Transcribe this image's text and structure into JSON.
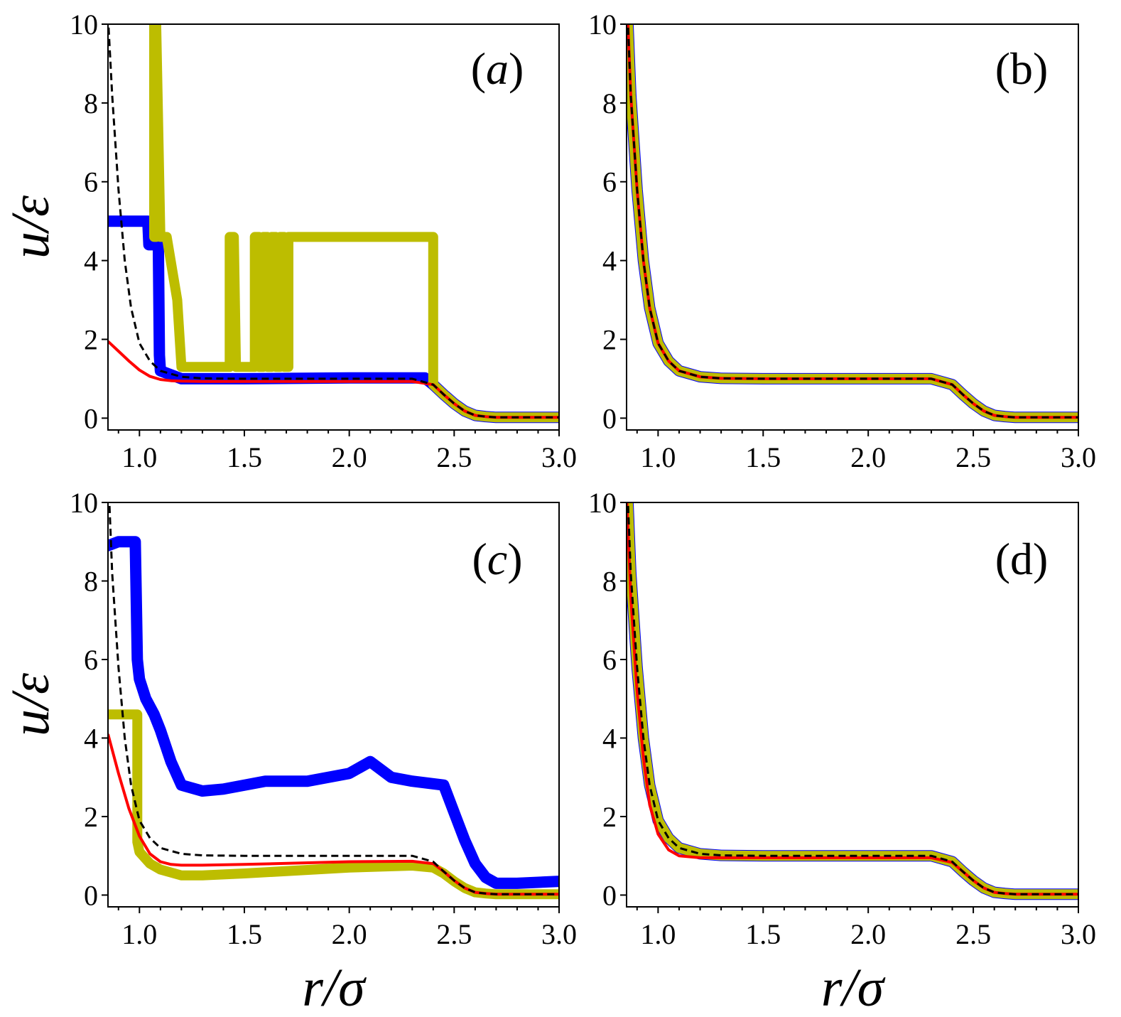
{
  "chart_data": [
    {
      "type": "line",
      "panel_label": "(a)",
      "panel_label_parts": [
        "(",
        "a",
        ")"
      ],
      "xlim": [
        0.85,
        3.0
      ],
      "ylim": [
        -0.3,
        10
      ],
      "xticks": [
        1.0,
        1.5,
        2.0,
        2.5,
        3.0
      ],
      "xtick_labels": [
        "1.0",
        "1.5",
        "2.0",
        "2.5",
        "3.0"
      ],
      "yticks": [
        0,
        2,
        4,
        6,
        8,
        10
      ],
      "ytick_labels": [
        "0",
        "2",
        "4",
        "6",
        "8",
        "10"
      ],
      "ylabel": "u/ε",
      "xlabel": "",
      "series": [
        {
          "name": "blue",
          "color": "#0000ff",
          "style": "thick",
          "x": [
            0.85,
            1.04,
            1.045,
            1.09,
            1.095,
            1.1,
            1.2,
            1.5,
            2.0,
            2.36,
            2.4,
            2.45,
            2.5,
            2.55,
            2.6,
            2.65,
            2.7,
            3.0
          ],
          "y": [
            5.0,
            5.0,
            4.4,
            4.4,
            1.6,
            1.2,
            1.0,
            1.0,
            1.02,
            1.02,
            0.85,
            0.6,
            0.37,
            0.18,
            0.07,
            0.04,
            0.02,
            0.02
          ]
        },
        {
          "name": "olive",
          "color": "#bdbd00",
          "style": "thick",
          "x": [
            1.07,
            1.07,
            1.08,
            1.08,
            1.1,
            1.13,
            1.18,
            1.2,
            1.43,
            1.43,
            1.45,
            1.46,
            1.46,
            1.48,
            1.48,
            1.55,
            1.55,
            1.57,
            1.57,
            1.59,
            1.59,
            1.61,
            1.61,
            1.63,
            1.63,
            1.65,
            1.65,
            1.67,
            1.67,
            1.69,
            1.69,
            1.71,
            1.71,
            2.4,
            2.4,
            2.45,
            2.5,
            2.55,
            2.6,
            2.65,
            2.7,
            3.0
          ],
          "y": [
            10,
            4.6,
            4.6,
            10,
            4.6,
            4.6,
            3.0,
            1.3,
            1.3,
            4.6,
            4.6,
            1.3,
            1.3,
            1.3,
            1.3,
            1.3,
            4.6,
            4.6,
            1.3,
            1.3,
            4.6,
            4.6,
            1.3,
            1.3,
            4.6,
            4.6,
            1.3,
            1.3,
            4.6,
            4.6,
            1.3,
            1.3,
            4.6,
            4.6,
            0.85,
            0.6,
            0.37,
            0.18,
            0.07,
            0.04,
            0.02,
            0.02
          ]
        },
        {
          "name": "red",
          "color": "#ff0000",
          "style": "solid",
          "x": [
            0.85,
            0.9,
            0.95,
            1.0,
            1.05,
            1.1,
            1.15,
            1.2,
            1.3,
            1.5,
            2.0,
            2.3,
            2.4,
            2.45,
            2.5,
            2.55,
            2.6,
            2.65,
            2.7,
            3.0
          ],
          "y": [
            1.95,
            1.7,
            1.45,
            1.22,
            1.06,
            0.98,
            0.95,
            0.94,
            0.93,
            0.93,
            0.93,
            0.93,
            0.85,
            0.6,
            0.37,
            0.18,
            0.07,
            0.04,
            0.02,
            0.02
          ]
        },
        {
          "name": "black-dashed",
          "color": "#000000",
          "style": "dashed",
          "x": [
            0.85,
            0.87,
            0.9,
            0.93,
            0.96,
            1.0,
            1.05,
            1.1,
            1.2,
            1.3,
            1.5,
            2.0,
            2.3,
            2.4,
            2.45,
            2.5,
            2.55,
            2.6,
            2.65,
            2.7,
            3.0
          ],
          "y": [
            10.2,
            8.2,
            5.8,
            4.0,
            2.8,
            1.9,
            1.45,
            1.2,
            1.05,
            1.01,
            1.0,
            1.0,
            1.0,
            0.85,
            0.6,
            0.37,
            0.18,
            0.07,
            0.04,
            0.02,
            0.02
          ]
        }
      ]
    },
    {
      "type": "line",
      "panel_label": "(b)",
      "panel_label_parts": [
        "(",
        "b",
        ")"
      ],
      "xlim": [
        0.85,
        3.0
      ],
      "ylim": [
        -0.3,
        10
      ],
      "xticks": [
        1.0,
        1.5,
        2.0,
        2.5,
        3.0
      ],
      "xtick_labels": [
        "1.0",
        "1.5",
        "2.0",
        "2.5",
        "3.0"
      ],
      "yticks": [
        0,
        2,
        4,
        6,
        8,
        10
      ],
      "ytick_labels": [
        "0",
        "2",
        "4",
        "6",
        "8",
        "10"
      ],
      "ylabel": "",
      "xlabel": "",
      "series": [
        {
          "name": "blue",
          "color": "#0000ff",
          "style": "thick",
          "x": [
            0.855,
            0.87,
            0.9,
            0.93,
            0.96,
            1.0,
            1.05,
            1.1,
            1.2,
            1.3,
            1.5,
            2.0,
            2.3,
            2.4,
            2.45,
            2.5,
            2.55,
            2.6,
            2.65,
            2.7,
            3.0
          ],
          "y": [
            10.2,
            8.2,
            5.8,
            4.0,
            2.8,
            1.9,
            1.45,
            1.2,
            1.05,
            1.01,
            1.0,
            1.0,
            1.0,
            0.85,
            0.6,
            0.37,
            0.18,
            0.07,
            0.04,
            0.02,
            0.02
          ]
        },
        {
          "name": "olive",
          "color": "#bdbd00",
          "style": "thick",
          "x": [
            0.855,
            0.87,
            0.9,
            0.93,
            0.96,
            1.0,
            1.05,
            1.1,
            1.2,
            1.3,
            1.5,
            2.0,
            2.3,
            2.4,
            2.45,
            2.5,
            2.55,
            2.6,
            2.65,
            2.7,
            3.0
          ],
          "y": [
            10.2,
            8.2,
            5.8,
            4.0,
            2.8,
            1.9,
            1.45,
            1.2,
            1.05,
            1.01,
            1.0,
            1.0,
            1.0,
            0.85,
            0.6,
            0.37,
            0.18,
            0.07,
            0.04,
            0.02,
            0.02
          ]
        },
        {
          "name": "red",
          "color": "#ff0000",
          "style": "solid",
          "x": [
            0.855,
            0.87,
            0.9,
            0.93,
            0.96,
            1.0,
            1.05,
            1.1,
            1.2,
            1.3,
            1.5,
            2.0,
            2.3,
            2.4,
            2.45,
            2.5,
            2.55,
            2.6,
            2.65,
            2.7,
            3.0
          ],
          "y": [
            10.2,
            8.2,
            5.8,
            4.0,
            2.8,
            1.9,
            1.45,
            1.2,
            1.05,
            1.01,
            1.0,
            1.0,
            1.0,
            0.85,
            0.6,
            0.37,
            0.18,
            0.07,
            0.04,
            0.02,
            0.02
          ]
        },
        {
          "name": "black-dashed",
          "color": "#000000",
          "style": "dashed",
          "x": [
            0.855,
            0.87,
            0.9,
            0.93,
            0.96,
            1.0,
            1.05,
            1.1,
            1.2,
            1.3,
            1.5,
            2.0,
            2.3,
            2.4,
            2.45,
            2.5,
            2.55,
            2.6,
            2.65,
            2.7,
            3.0
          ],
          "y": [
            10.2,
            8.2,
            5.8,
            4.0,
            2.8,
            1.9,
            1.45,
            1.2,
            1.05,
            1.01,
            1.0,
            1.0,
            1.0,
            0.85,
            0.6,
            0.37,
            0.18,
            0.07,
            0.04,
            0.02,
            0.02
          ]
        }
      ]
    },
    {
      "type": "line",
      "panel_label": "(c)",
      "panel_label_parts": [
        "(",
        "c",
        ")"
      ],
      "xlim": [
        0.85,
        3.0
      ],
      "ylim": [
        -0.3,
        10
      ],
      "xticks": [
        1.0,
        1.5,
        2.0,
        2.5,
        3.0
      ],
      "xtick_labels": [
        "1.0",
        "1.5",
        "2.0",
        "2.5",
        "3.0"
      ],
      "yticks": [
        0,
        2,
        4,
        6,
        8,
        10
      ],
      "ytick_labels": [
        "0",
        "2",
        "4",
        "6",
        "8",
        "10"
      ],
      "ylabel": "u/ε",
      "xlabel": "r/σ",
      "series": [
        {
          "name": "blue",
          "color": "#0000ff",
          "style": "thick",
          "x": [
            0.85,
            0.9,
            0.95,
            0.98,
            0.99,
            1.0,
            1.03,
            1.07,
            1.1,
            1.15,
            1.2,
            1.3,
            1.4,
            1.6,
            1.8,
            2.0,
            2.1,
            2.2,
            2.3,
            2.45,
            2.5,
            2.55,
            2.6,
            2.65,
            2.7,
            2.8,
            3.0
          ],
          "y": [
            8.9,
            9.0,
            9.0,
            9.0,
            6.0,
            5.5,
            5.0,
            4.6,
            4.2,
            3.4,
            2.8,
            2.65,
            2.7,
            2.9,
            2.9,
            3.1,
            3.4,
            3.0,
            2.9,
            2.8,
            2.1,
            1.4,
            0.8,
            0.45,
            0.3,
            0.3,
            0.35
          ]
        },
        {
          "name": "olive",
          "color": "#bdbd00",
          "style": "thick",
          "x": [
            0.85,
            0.99,
            0.99,
            1.0,
            1.05,
            1.1,
            1.2,
            1.3,
            1.5,
            2.0,
            2.3,
            2.4,
            2.45,
            2.5,
            2.55,
            2.6,
            2.65,
            2.7,
            3.0
          ],
          "y": [
            4.6,
            4.6,
            1.35,
            1.1,
            0.8,
            0.65,
            0.5,
            0.5,
            0.55,
            0.7,
            0.75,
            0.7,
            0.55,
            0.35,
            0.18,
            0.07,
            0.04,
            0.02,
            0.02
          ]
        },
        {
          "name": "red",
          "color": "#ff0000",
          "style": "solid",
          "x": [
            0.85,
            0.9,
            0.95,
            1.0,
            1.05,
            1.1,
            1.15,
            1.2,
            1.3,
            1.5,
            2.0,
            2.3,
            2.4,
            2.45,
            2.5,
            2.55,
            2.6,
            2.65,
            2.7,
            3.0
          ],
          "y": [
            4.1,
            3.1,
            2.2,
            1.5,
            1.05,
            0.85,
            0.78,
            0.76,
            0.76,
            0.78,
            0.85,
            0.86,
            0.8,
            0.6,
            0.37,
            0.18,
            0.07,
            0.04,
            0.02,
            0.02
          ]
        },
        {
          "name": "black-dashed",
          "color": "#000000",
          "style": "dashed",
          "x": [
            0.855,
            0.87,
            0.9,
            0.93,
            0.96,
            1.0,
            1.05,
            1.1,
            1.2,
            1.3,
            1.5,
            2.0,
            2.3,
            2.4,
            2.45,
            2.5,
            2.55,
            2.6,
            2.65,
            2.7,
            3.0
          ],
          "y": [
            10.2,
            8.2,
            5.8,
            4.0,
            2.8,
            1.9,
            1.45,
            1.2,
            1.05,
            1.01,
            1.0,
            1.0,
            1.0,
            0.85,
            0.6,
            0.37,
            0.18,
            0.07,
            0.04,
            0.02,
            0.02
          ]
        }
      ]
    },
    {
      "type": "line",
      "panel_label": "(d)",
      "panel_label_parts": [
        "(",
        "d",
        ")"
      ],
      "xlim": [
        0.85,
        3.0
      ],
      "ylim": [
        -0.3,
        10
      ],
      "xticks": [
        1.0,
        1.5,
        2.0,
        2.5,
        3.0
      ],
      "xtick_labels": [
        "1.0",
        "1.5",
        "2.0",
        "2.5",
        "3.0"
      ],
      "yticks": [
        0,
        2,
        4,
        6,
        8,
        10
      ],
      "ytick_labels": [
        "0",
        "2",
        "4",
        "6",
        "8",
        "10"
      ],
      "ylabel": "",
      "xlabel": "r/σ",
      "series": [
        {
          "name": "blue",
          "color": "#0000ff",
          "style": "thick",
          "x": [
            0.855,
            0.87,
            0.9,
            0.93,
            0.96,
            1.0,
            1.05,
            1.1,
            1.2,
            1.3,
            1.5,
            2.0,
            2.3,
            2.4,
            2.45,
            2.5,
            2.55,
            2.6,
            2.65,
            2.7,
            3.0
          ],
          "y": [
            10.2,
            8.2,
            5.8,
            4.0,
            2.8,
            1.9,
            1.45,
            1.2,
            1.05,
            1.01,
            1.0,
            1.0,
            1.0,
            0.85,
            0.6,
            0.37,
            0.18,
            0.07,
            0.04,
            0.02,
            0.02
          ]
        },
        {
          "name": "olive",
          "color": "#bdbd00",
          "style": "thick",
          "x": [
            0.855,
            0.87,
            0.9,
            0.93,
            0.96,
            1.0,
            1.05,
            1.1,
            1.2,
            1.3,
            1.5,
            2.0,
            2.3,
            2.4,
            2.45,
            2.5,
            2.55,
            2.6,
            2.65,
            2.7,
            3.0
          ],
          "y": [
            10.2,
            8.2,
            5.8,
            4.0,
            2.8,
            1.9,
            1.45,
            1.2,
            1.05,
            1.01,
            1.0,
            1.0,
            1.0,
            0.85,
            0.6,
            0.37,
            0.18,
            0.07,
            0.04,
            0.02,
            0.02
          ]
        },
        {
          "name": "red",
          "color": "#ff0000",
          "style": "solid",
          "x": [
            0.85,
            0.87,
            0.9,
            0.93,
            0.96,
            1.0,
            1.05,
            1.1,
            1.2,
            1.3,
            1.5,
            2.0,
            2.3,
            2.4,
            2.45,
            2.5,
            2.55,
            2.6,
            2.65,
            2.7,
            3.0
          ],
          "y": [
            10.2,
            7.6,
            5.2,
            3.5,
            2.3,
            1.55,
            1.15,
            1.0,
            0.95,
            0.95,
            0.95,
            0.95,
            0.95,
            0.83,
            0.6,
            0.37,
            0.18,
            0.07,
            0.04,
            0.02,
            0.02
          ]
        },
        {
          "name": "black-dashed",
          "color": "#000000",
          "style": "dashed",
          "x": [
            0.855,
            0.87,
            0.9,
            0.93,
            0.96,
            1.0,
            1.05,
            1.1,
            1.2,
            1.3,
            1.5,
            2.0,
            2.3,
            2.4,
            2.45,
            2.5,
            2.55,
            2.6,
            2.65,
            2.7,
            3.0
          ],
          "y": [
            10.2,
            8.2,
            5.8,
            4.0,
            2.8,
            1.9,
            1.45,
            1.2,
            1.05,
            1.01,
            1.0,
            1.0,
            1.0,
            0.85,
            0.6,
            0.37,
            0.18,
            0.07,
            0.04,
            0.02,
            0.02
          ]
        }
      ]
    }
  ]
}
